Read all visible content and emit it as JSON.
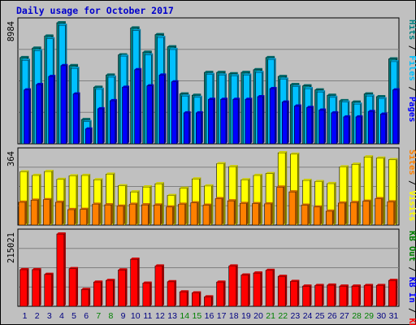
{
  "title": "Daily usage for October 2017",
  "chart_data": [
    {
      "type": "bar",
      "title": "Daily usage for October 2017",
      "categories": [
        "1",
        "2",
        "3",
        "4",
        "5",
        "6",
        "7",
        "8",
        "9",
        "10",
        "11",
        "12",
        "13",
        "14",
        "15",
        "16",
        "17",
        "18",
        "19",
        "20",
        "21",
        "22",
        "23",
        "24",
        "25",
        "26",
        "27",
        "28",
        "29",
        "30",
        "31"
      ],
      "weekend_days": [
        "7",
        "8",
        "14",
        "15",
        "21",
        "22",
        "28",
        "29"
      ],
      "max_label": "8984",
      "ylim": [
        0,
        8984
      ],
      "ylabel": [
        "Pages",
        "Files",
        "Hits"
      ],
      "series": [
        {
          "name": "Hits",
          "color": "#008080",
          "values": [
            6400,
            7100,
            8000,
            8984,
            5800,
            1800,
            4200,
            5100,
            6600,
            8600,
            6800,
            8100,
            7200,
            3700,
            3600,
            5300,
            5300,
            5200,
            5300,
            5500,
            6400,
            5000,
            4400,
            4300,
            4000,
            3600,
            3200,
            3100,
            3700,
            3500,
            6300
          ]
        },
        {
          "name": "Files",
          "color": "#00c0ff",
          "values": [
            6200,
            6900,
            7800,
            8800,
            5600,
            1650,
            4050,
            4950,
            6500,
            8400,
            6600,
            7900,
            7000,
            3550,
            3450,
            5150,
            5100,
            5050,
            5100,
            5300,
            6250,
            4800,
            4250,
            4100,
            3850,
            3450,
            3100,
            2950,
            3550,
            3350,
            6100
          ]
        },
        {
          "name": "Pages",
          "color": "#0000ff",
          "values": [
            4000,
            4400,
            5000,
            5800,
            3700,
            1100,
            2600,
            3200,
            4200,
            5500,
            4300,
            5100,
            4600,
            2300,
            2300,
            3300,
            3300,
            3300,
            3300,
            3500,
            4100,
            3100,
            2800,
            2700,
            2500,
            2300,
            2000,
            2000,
            2400,
            2200,
            4000
          ]
        }
      ]
    },
    {
      "type": "bar",
      "categories": [
        "1",
        "2",
        "3",
        "4",
        "5",
        "6",
        "7",
        "8",
        "9",
        "10",
        "11",
        "12",
        "13",
        "14",
        "15",
        "16",
        "17",
        "18",
        "19",
        "20",
        "21",
        "22",
        "23",
        "24",
        "25",
        "26",
        "27",
        "28",
        "29",
        "30",
        "31"
      ],
      "max_label": "364",
      "ylim": [
        0,
        364
      ],
      "ylabel": [
        "Visits",
        "Sites"
      ],
      "series": [
        {
          "name": "Visits",
          "color": "#ffff00",
          "values": [
            268,
            250,
            270,
            230,
            248,
            250,
            228,
            256,
            198,
            167,
            192,
            208,
            149,
            185,
            232,
            197,
            309,
            294,
            228,
            250,
            259,
            364,
            357,
            225,
            219,
            209,
            293,
            306,
            343,
            337,
            329
          ]
        },
        {
          "name": "Sites",
          "color": "#ff8000",
          "values": [
            115,
            125,
            128,
            115,
            78,
            79,
            105,
            102,
            95,
            105,
            102,
            101,
            91,
            105,
            112,
            100,
            133,
            122,
            109,
            108,
            107,
            191,
            167,
            100,
            91,
            70,
            111,
            114,
            120,
            133,
            117
          ]
        }
      ]
    },
    {
      "type": "bar",
      "categories": [
        "1",
        "2",
        "3",
        "4",
        "5",
        "6",
        "7",
        "8",
        "9",
        "10",
        "11",
        "12",
        "13",
        "14",
        "15",
        "16",
        "17",
        "18",
        "19",
        "20",
        "21",
        "22",
        "23",
        "24",
        "25",
        "26",
        "27",
        "28",
        "29",
        "30",
        "31"
      ],
      "max_label": "215021",
      "ylim": [
        0,
        215021
      ],
      "ylabel": [
        "KB F",
        "KB In",
        "KB Out"
      ],
      "series": [
        {
          "name": "KB F",
          "color": "#ff0000",
          "values": [
            109000,
            109000,
            95000,
            215021,
            112000,
            50000,
            72000,
            77000,
            108000,
            140000,
            69000,
            120000,
            73000,
            43000,
            40000,
            28000,
            72000,
            120000,
            93000,
            99000,
            107000,
            89000,
            74000,
            60000,
            62000,
            63000,
            60000,
            60000,
            62000,
            62000,
            77000
          ]
        }
      ]
    }
  ]
}
